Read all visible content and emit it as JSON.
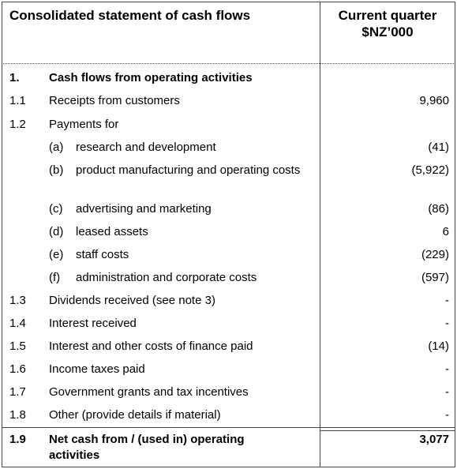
{
  "header": {
    "title": "Consolidated statement of cash flows",
    "column": [
      "Current quarter",
      "$NZ’000"
    ]
  },
  "rows": [
    {
      "number": "1.",
      "label": "Cash flows from operating activities",
      "bold": true
    },
    {
      "number": "1.1",
      "label": "Receipts from customers",
      "value": "9,960"
    },
    {
      "number": "1.2",
      "label": "Payments for"
    },
    {
      "marker": "(a)",
      "label": "research and development",
      "value": "(41)"
    },
    {
      "marker": "(b)",
      "label": "product manufacturing and operating costs",
      "value": "(5,922)"
    },
    {
      "marker": "(c)",
      "label": "advertising and marketing",
      "value": "(86)"
    },
    {
      "marker": "(d)",
      "label": "leased assets",
      "value": "6"
    },
    {
      "marker": "(e)",
      "label": "staff costs",
      "value": "(229)"
    },
    {
      "marker": "(f)",
      "label": "administration and corporate costs",
      "value": "(597)"
    },
    {
      "number": "1.3",
      "label": "Dividends received (see note 3)",
      "value": "-"
    },
    {
      "number": "1.4",
      "label": "Interest received",
      "value": "-"
    },
    {
      "number": "1.5",
      "label": "Interest and other costs of finance paid",
      "value": "(14)"
    },
    {
      "number": "1.6",
      "label": "Income taxes paid",
      "value": "-"
    },
    {
      "number": "1.7",
      "label": "Government grants and tax incentives",
      "value": "-"
    },
    {
      "number": "1.8",
      "label": "Other (provide details if material)",
      "value": "-"
    },
    {
      "number": "1.9",
      "label": "Net cash from / (used in) operating activities",
      "value": "3,077",
      "bold": true
    }
  ]
}
